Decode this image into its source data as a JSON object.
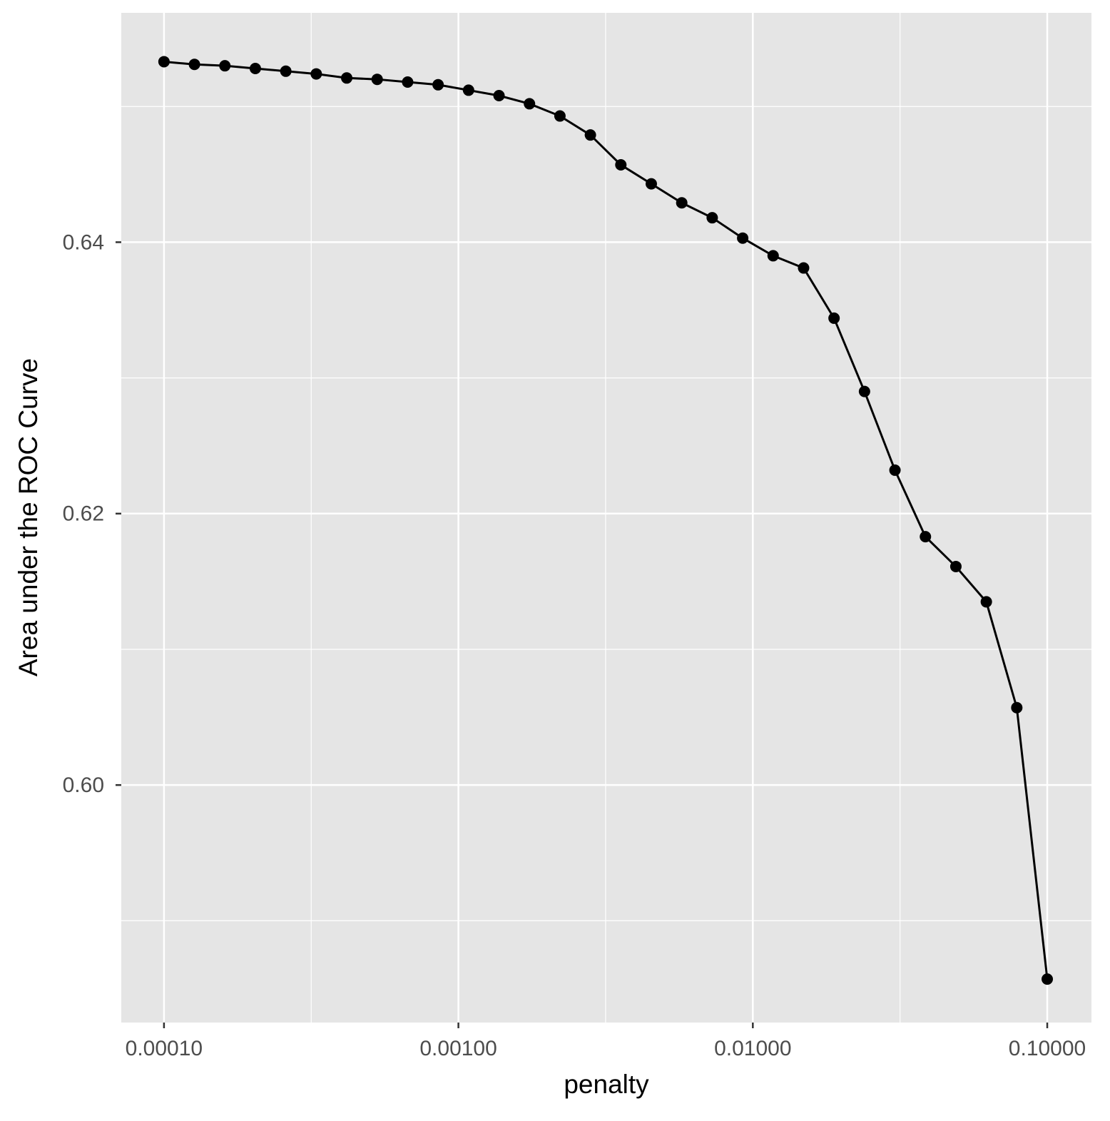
{
  "chart_data": {
    "type": "line",
    "xlabel": "penalty",
    "ylabel": "Area under the ROC Curve",
    "xscale": "log",
    "grid": true,
    "color": "#000000",
    "xlim": [
      7.16e-05,
      0.1413
    ],
    "ylim": [
      0.5825,
      0.6569
    ],
    "xticks": [
      {
        "value": 0.0001,
        "label": "0.00010"
      },
      {
        "value": 0.001,
        "label": "0.00100"
      },
      {
        "value": 0.01,
        "label": "0.01000"
      },
      {
        "value": 0.1,
        "label": "0.10000"
      }
    ],
    "yticks": [
      {
        "value": 0.6,
        "label": "0.60"
      },
      {
        "value": 0.62,
        "label": "0.62"
      },
      {
        "value": 0.64,
        "label": "0.64"
      }
    ],
    "x": [
      0.0001,
      0.0001269,
      0.000161,
      0.0002043,
      0.0002593,
      0.000329,
      0.0004175,
      0.0005298,
      0.0006723,
      0.0008532,
      0.0010826,
      0.0013738,
      0.0017433,
      0.0022122,
      0.0028072,
      0.0035622,
      0.0045203,
      0.005736,
      0.007279,
      0.009237,
      0.011721,
      0.014874,
      0.018874,
      0.02395,
      0.030392,
      0.038566,
      0.048939,
      0.062102,
      0.078805,
      0.1
    ],
    "values": [
      0.6533,
      0.6531,
      0.653,
      0.6528,
      0.6526,
      0.6524,
      0.6521,
      0.652,
      0.6518,
      0.6516,
      0.6512,
      0.6508,
      0.6502,
      0.6493,
      0.6479,
      0.6457,
      0.6443,
      0.6429,
      0.6418,
      0.6403,
      0.639,
      0.6381,
      0.6344,
      0.629,
      0.6232,
      0.6183,
      0.6161,
      0.6135,
      0.6057,
      0.5857
    ]
  }
}
